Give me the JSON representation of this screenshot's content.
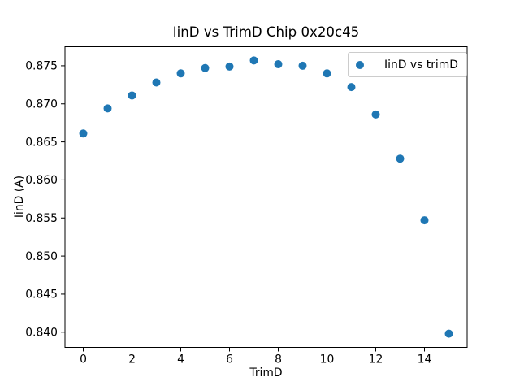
{
  "figure": {
    "background": "#ffffff"
  },
  "chart_data": {
    "type": "scatter",
    "title": "IinD vs TrimD Chip 0x20c45",
    "xlabel": "TrimD",
    "ylabel": "IinD (A)",
    "legend_entries": [
      "IinD vs trimD"
    ],
    "legend_position": "upper right",
    "marker_color": "#1f77b4",
    "axis_color": "#000000",
    "legend_border_color": "#cccccc",
    "grid": false,
    "x": [
      0,
      1,
      2,
      3,
      4,
      5,
      6,
      7,
      8,
      9,
      10,
      11,
      12,
      13,
      14,
      15
    ],
    "y": [
      0.8661,
      0.8694,
      0.8711,
      0.8728,
      0.874,
      0.8747,
      0.8749,
      0.8757,
      0.8752,
      0.875,
      0.874,
      0.8722,
      0.8686,
      0.8628,
      0.8547,
      0.8398
    ],
    "xlim": [
      -0.75,
      15.75
    ],
    "ylim": [
      0.838,
      0.8775
    ],
    "xticks": [
      0,
      2,
      4,
      6,
      8,
      10,
      12,
      14
    ],
    "yticks": [
      0.84,
      0.845,
      0.85,
      0.855,
      0.86,
      0.865,
      0.87,
      0.875
    ],
    "ytick_decimals": 3
  }
}
